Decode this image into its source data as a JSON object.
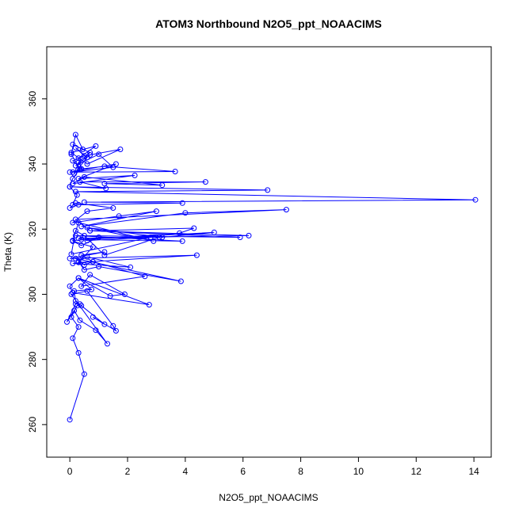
{
  "chart_data": {
    "type": "line",
    "title": "ATOM3 Northbound N2O5_ppt_NOAACIMS",
    "xlabel": "N2O5_ppt_NOAACIMS",
    "ylabel": "Theta (K)",
    "xlim": [
      -0.8,
      14.6
    ],
    "ylim": [
      250,
      376
    ],
    "xticks": [
      0,
      2,
      4,
      6,
      8,
      10,
      12,
      14
    ],
    "yticks": [
      260,
      280,
      300,
      320,
      340,
      360
    ],
    "grid": false,
    "color": "#0000ff",
    "marker": "open-circle",
    "series": [
      {
        "x": [
          0.0,
          0.5,
          0.3,
          0.1,
          0.3,
          0.05,
          0.25,
          0.35,
          0.2,
          -0.1,
          0.15,
          0.35,
          0.9,
          1.3,
          0.05,
          0.6,
          1.5,
          1.6,
          0.8,
          1.2,
          0.4,
          0.2,
          0.15,
          0.75,
          0.3,
          2.75,
          0.1,
          0.0,
          0.3,
          1.4,
          1.9,
          0.7,
          0.4,
          2.6,
          0.8,
          0.5,
          0.2,
          3.85,
          1.0,
          0.5,
          0.3,
          0.6,
          2.1,
          0.1,
          0.8,
          0.4,
          1.2,
          0.0,
          4.4,
          0.3,
          0.8,
          0.1,
          0.4,
          1.0,
          3.1,
          1.2,
          0.5,
          0.2,
          0.05,
          2.8,
          0.6,
          0.3,
          6.2,
          0.7,
          5.9,
          0.2,
          3.9,
          0.4,
          5.0,
          3.2,
          0.6,
          2.9,
          0.3,
          0.1,
          3.8,
          4.3,
          0.7,
          0.2,
          7.5,
          4.0,
          0.4,
          3.0,
          1.7,
          0.1,
          0.6,
          1.5,
          0.2,
          0.0,
          0.3,
          3.9,
          0.5,
          14.05,
          0.2,
          6.85,
          0.0,
          1.25,
          0.35,
          4.7,
          1.2,
          3.2,
          0.5,
          0.1,
          2.25,
          0.3,
          1.6,
          0.0,
          3.65,
          1.2,
          0.4,
          0.1,
          1.5,
          1.0,
          0.2,
          0.7,
          1.75,
          0.6,
          0.05,
          0.9,
          0.3,
          0.4,
          0.1,
          0.5,
          0.2,
          0.6,
          0.15,
          0.3,
          0.7,
          0.1,
          0.45,
          0.2,
          0.05,
          0.35,
          0.1,
          0.0,
          0.25,
          0.1
        ],
        "y": [
          261.5,
          275.5,
          282,
          286.5,
          290,
          293,
          296.5,
          297,
          297,
          291.5,
          295,
          292,
          289,
          284.8,
          300,
          301,
          290.3,
          288.8,
          293,
          290.8,
          296.5,
          298,
          301,
          301.5,
          305,
          296.8,
          300.5,
          302.5,
          305,
          299.5,
          300,
          306,
          302.5,
          305.5,
          310,
          309,
          311,
          304,
          308.5,
          307.5,
          310,
          311.5,
          308.3,
          309.5,
          310,
          312,
          313,
          311,
          312,
          309.8,
          314.5,
          316.3,
          315,
          317.5,
          317.5,
          312,
          318,
          319.5,
          312.3,
          317.5,
          316.5,
          317.2,
          318,
          319.5,
          317.5,
          318,
          316.3,
          316.8,
          319,
          317.5,
          320.5,
          316.3,
          322,
          316.5,
          318.8,
          320.3,
          319.5,
          323,
          326,
          325,
          320.8,
          325.5,
          324,
          322,
          325.5,
          326.5,
          328,
          326.5,
          327.5,
          328,
          328.3,
          329,
          331.5,
          332,
          333,
          332.5,
          334.5,
          334.5,
          334,
          333.5,
          336,
          334,
          336.5,
          335.5,
          340,
          337.5,
          337.7,
          339.3,
          338.5,
          337.5,
          339,
          343,
          339.5,
          342.8,
          344.5,
          340,
          343.5,
          345.5,
          341.8,
          338.5,
          341,
          342.5,
          345,
          342,
          337,
          340.5,
          343.5,
          346,
          344.5,
          349,
          343,
          338.5,
          335.5,
          333,
          330.5,
          327.5
        ]
      }
    ]
  }
}
